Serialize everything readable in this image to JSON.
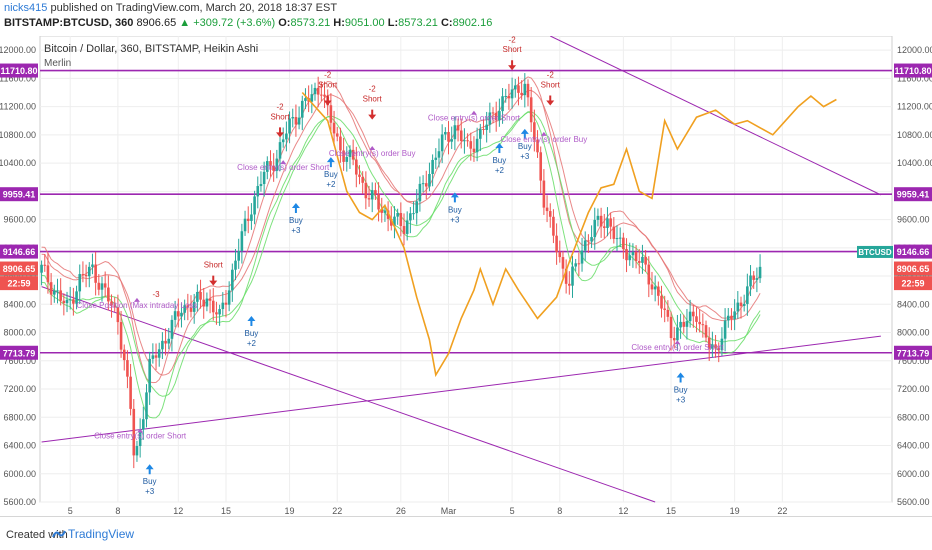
{
  "header": {
    "user": "nicks415",
    "published_text": "published on TradingView.com, March 20, 2018 18:37 EST",
    "symbol": "BITSTAMP:BTCUSD, 360",
    "last": "8906.65",
    "change": "+309.72 (+3.6%)",
    "o_label": "O:",
    "o": "8573.21",
    "h_label": "H:",
    "h": "9051.00",
    "l_label": "L:",
    "l": "8573.21",
    "c_label": "C:",
    "c": "8902.16"
  },
  "chart": {
    "title": "Bitcoin / Dollar, 360, BITSTAMP, Heikin Ashi",
    "indicator": "Merlin"
  },
  "footer": {
    "created": "Created with",
    "brand": "TradingView"
  },
  "colors": {
    "up": "#26a69a",
    "down": "#ef5350",
    "purple": "#9c27b0",
    "orange": "#f0a020",
    "green_line": "#66dd66",
    "red_line": "#e57373",
    "signal_violet": "#b05cc8"
  },
  "chart_data": {
    "type": "candlestick",
    "ylim": [
      5600,
      12200
    ],
    "y_ticks": [
      5600,
      6000,
      6400,
      6800,
      7200,
      7600,
      8000,
      8400,
      8800,
      9200,
      9600,
      10000,
      10400,
      10800,
      11200,
      11600,
      12000
    ],
    "y_tick_labels": [
      "5600.00",
      "6000.00",
      "6400.00",
      "6800.00",
      "7200.00",
      "7600.00",
      "8000.00",
      "8400.00",
      "8800.00",
      "9200.00",
      "9600.00",
      "10000.00",
      "10400.00",
      "10800.00",
      "11200.00",
      "11600.00",
      "12000.00"
    ],
    "x_labels": [
      "5",
      "8",
      "12",
      "15",
      "19",
      "22",
      "26",
      "Mar",
      "5",
      "8",
      "12",
      "15",
      "19",
      "22"
    ],
    "x_label_index": [
      9,
      24,
      43,
      58,
      78,
      93,
      113,
      128,
      148,
      163,
      183,
      198,
      218,
      233
    ],
    "price_tags": [
      {
        "value": 11710.8,
        "label": "11710.80",
        "color": "#9c27b0"
      },
      {
        "value": 9959.41,
        "label": "9959.41",
        "color": "#9c27b0"
      },
      {
        "value": 9146.66,
        "label": "9146.66",
        "color": "#9c27b0"
      },
      {
        "value": 8902.16,
        "label": "8902.16",
        "color": "#26a69a"
      },
      {
        "value": 8906.65,
        "label": "8906.65",
        "color": "#ef5350"
      },
      {
        "value": 7713.79,
        "label": "7713.79",
        "color": "#9c27b0"
      }
    ],
    "current_tag": {
      "symbol": "BTCUSD",
      "value": "8902.16",
      "time": "22:59",
      "close": "8906.65"
    },
    "horizontal_levels": [
      11710.8,
      9959.41,
      9146.66,
      7713.79
    ],
    "path_points": [
      [
        0,
        8900
      ],
      [
        4,
        8600
      ],
      [
        8,
        8350
      ],
      [
        12,
        8750
      ],
      [
        16,
        8900
      ],
      [
        20,
        8550
      ],
      [
        24,
        8200
      ],
      [
        26,
        7600
      ],
      [
        28,
        6900
      ],
      [
        29,
        6300
      ],
      [
        30,
        6350
      ],
      [
        32,
        6900
      ],
      [
        34,
        7500
      ],
      [
        36,
        7700
      ],
      [
        40,
        8000
      ],
      [
        44,
        8350
      ],
      [
        48,
        8400
      ],
      [
        52,
        8500
      ],
      [
        56,
        8200
      ],
      [
        58,
        8500
      ],
      [
        62,
        9200
      ],
      [
        66,
        9800
      ],
      [
        70,
        10250
      ],
      [
        74,
        10500
      ],
      [
        78,
        10950
      ],
      [
        82,
        11200
      ],
      [
        86,
        11400
      ],
      [
        88,
        11500
      ],
      [
        90,
        11100
      ],
      [
        94,
        10600
      ],
      [
        98,
        10400
      ],
      [
        102,
        10000
      ],
      [
        106,
        9800
      ],
      [
        110,
        9600
      ],
      [
        114,
        9500
      ],
      [
        118,
        9850
      ],
      [
        122,
        10300
      ],
      [
        126,
        10700
      ],
      [
        130,
        10900
      ],
      [
        134,
        10600
      ],
      [
        138,
        10800
      ],
      [
        142,
        11100
      ],
      [
        146,
        11300
      ],
      [
        150,
        11500
      ],
      [
        152,
        11450
      ],
      [
        154,
        11000
      ],
      [
        156,
        10500
      ],
      [
        158,
        9900
      ],
      [
        160,
        9500
      ],
      [
        162,
        9200
      ],
      [
        164,
        8900
      ],
      [
        166,
        8700
      ],
      [
        168,
        8900
      ],
      [
        170,
        9200
      ],
      [
        174,
        9500
      ],
      [
        178,
        9600
      ],
      [
        182,
        9200
      ],
      [
        186,
        9100
      ],
      [
        190,
        8900
      ],
      [
        194,
        8500
      ],
      [
        198,
        8000
      ],
      [
        202,
        8100
      ],
      [
        206,
        8300
      ],
      [
        208,
        8000
      ],
      [
        210,
        7800
      ],
      [
        212,
        7750
      ],
      [
        214,
        8000
      ],
      [
        218,
        8300
      ],
      [
        222,
        8600
      ],
      [
        226,
        8900
      ]
    ],
    "orange_line": [
      [
        82,
        11400
      ],
      [
        90,
        11000
      ],
      [
        96,
        10000
      ],
      [
        100,
        9700
      ],
      [
        104,
        9600
      ],
      [
        108,
        9800
      ],
      [
        112,
        9400
      ],
      [
        114,
        9200
      ],
      [
        118,
        8500
      ],
      [
        122,
        7900
      ],
      [
        124,
        7400
      ],
      [
        128,
        7700
      ],
      [
        132,
        8200
      ],
      [
        136,
        8600
      ],
      [
        138,
        8900
      ],
      [
        142,
        8400
      ],
      [
        146,
        8900
      ],
      [
        150,
        8600
      ],
      [
        156,
        8200
      ],
      [
        162,
        8500
      ],
      [
        166,
        9000
      ],
      [
        172,
        9700
      ],
      [
        176,
        10050
      ],
      [
        180,
        10100
      ],
      [
        184,
        10600
      ],
      [
        188,
        10000
      ],
      [
        192,
        9900
      ],
      [
        196,
        11000
      ],
      [
        200,
        10600
      ],
      [
        206,
        11050
      ],
      [
        212,
        11150
      ],
      [
        218,
        10950
      ],
      [
        222,
        11000
      ],
      [
        226,
        10900
      ],
      [
        230,
        10800
      ],
      [
        234,
        11000
      ],
      [
        238,
        11200
      ],
      [
        242,
        11350
      ],
      [
        246,
        11200
      ],
      [
        250,
        11300
      ]
    ],
    "trend_lines": [
      {
        "from": [
          0,
          8650
        ],
        "to": [
          193,
          5600
        ]
      },
      {
        "from": [
          0,
          6450
        ],
        "to": [
          264,
          7950
        ]
      },
      {
        "from": [
          160,
          12200
        ],
        "to": [
          264,
          9950
        ]
      }
    ],
    "signals": [
      {
        "index": 31,
        "value": 6500,
        "label": "Close entry(s) order Short",
        "type": "close"
      },
      {
        "index": 34,
        "value": 6050,
        "label": "Buy",
        "qty": "+3",
        "type": "buy"
      },
      {
        "index": 30,
        "value": 8350,
        "label": "Close Position (Max intraday Loss",
        "type": "close"
      },
      {
        "index": 36,
        "value": 8500,
        "label": "-3",
        "type": "qty"
      },
      {
        "index": 54,
        "value": 8750,
        "label": "Short",
        "type": "short"
      },
      {
        "index": 66,
        "value": 8150,
        "label": "Buy",
        "qty": "+2",
        "type": "buy"
      },
      {
        "index": 75,
        "value": 10850,
        "label": "Short",
        "qty": "-2",
        "type": "short"
      },
      {
        "index": 80,
        "value": 9750,
        "label": "Buy",
        "qty": "+3",
        "type": "buy"
      },
      {
        "index": 76,
        "value": 10300,
        "label": "Close entry(s) order Short",
        "type": "close"
      },
      {
        "index": 90,
        "value": 11300,
        "label": "Short",
        "qty": "-2",
        "type": "short"
      },
      {
        "index": 91,
        "value": 10400,
        "label": "Buy",
        "qty": "+2",
        "type": "buy"
      },
      {
        "index": 104,
        "value": 11100,
        "label": "Short",
        "qty": "-2",
        "type": "short"
      },
      {
        "index": 104,
        "value": 10500,
        "label": "Close entry(s) order Buy",
        "type": "close"
      },
      {
        "index": 130,
        "value": 9900,
        "label": "Buy",
        "qty": "+3",
        "type": "buy"
      },
      {
        "index": 136,
        "value": 11000,
        "label": "Close entry(s) order Short",
        "type": "close"
      },
      {
        "index": 144,
        "value": 10600,
        "label": "Buy",
        "qty": "+2",
        "type": "buy"
      },
      {
        "index": 148,
        "value": 11800,
        "label": "Short",
        "qty": "-2",
        "type": "short"
      },
      {
        "index": 152,
        "value": 10800,
        "label": "Buy",
        "qty": "+3",
        "type": "buy"
      },
      {
        "index": 160,
        "value": 11300,
        "label": "Short",
        "qty": "-2",
        "type": "short"
      },
      {
        "index": 158,
        "value": 10700,
        "label": "Close entry(s) order Buy",
        "type": "close"
      },
      {
        "index": 200,
        "value": 7750,
        "label": "Close entry(s) order Short",
        "type": "close"
      },
      {
        "index": 201,
        "value": 7350,
        "label": "Buy",
        "qty": "+3",
        "type": "buy"
      }
    ]
  }
}
